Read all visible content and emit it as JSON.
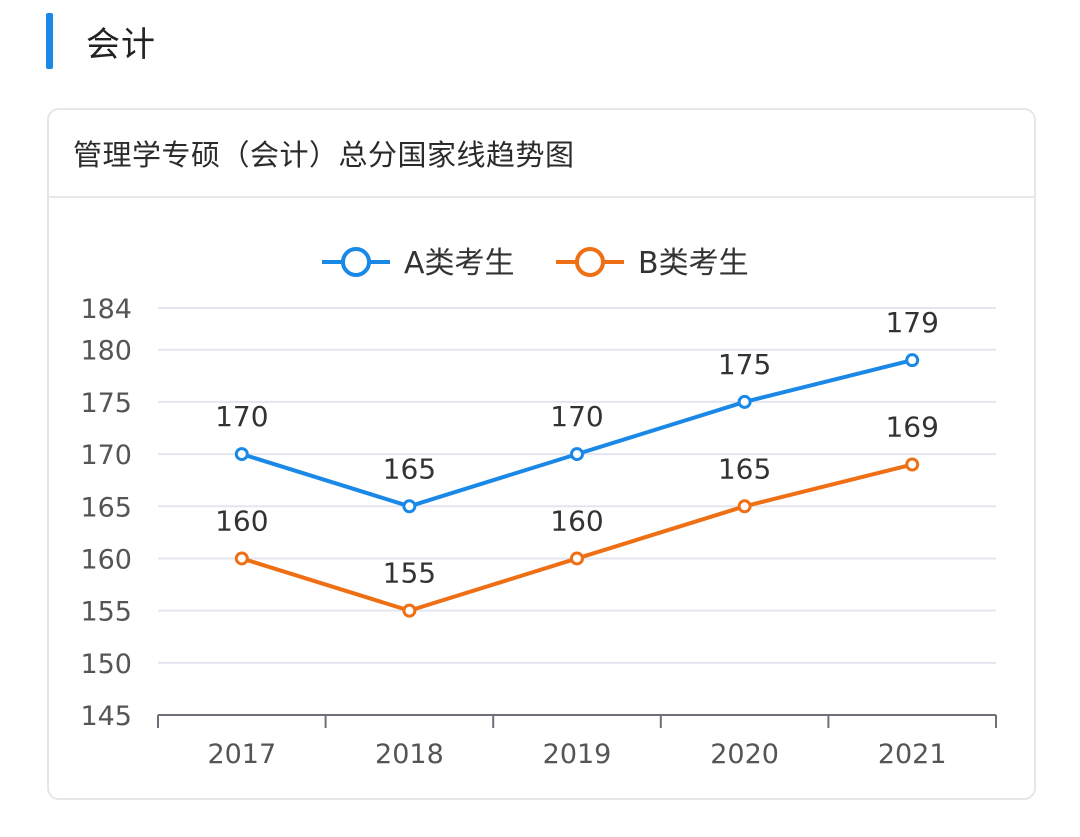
{
  "section": {
    "title": "会计"
  },
  "card": {
    "title": "管理学专硕（会计）总分国家线趋势图"
  },
  "chart_data": {
    "type": "line",
    "categories": [
      "2017",
      "2018",
      "2019",
      "2020",
      "2021"
    ],
    "series": [
      {
        "name": "A类考生",
        "values": [
          170,
          165,
          170,
          175,
          179
        ],
        "color": "#1a88e6"
      },
      {
        "name": "B类考生",
        "values": [
          160,
          155,
          160,
          165,
          169
        ],
        "color": "#ee6f14"
      }
    ],
    "yticks": [
      145,
      150,
      155,
      160,
      165,
      170,
      175,
      180,
      184
    ],
    "ylim": [
      145,
      184
    ],
    "grid": true,
    "legend_position": "top-center",
    "data_labels": true
  }
}
